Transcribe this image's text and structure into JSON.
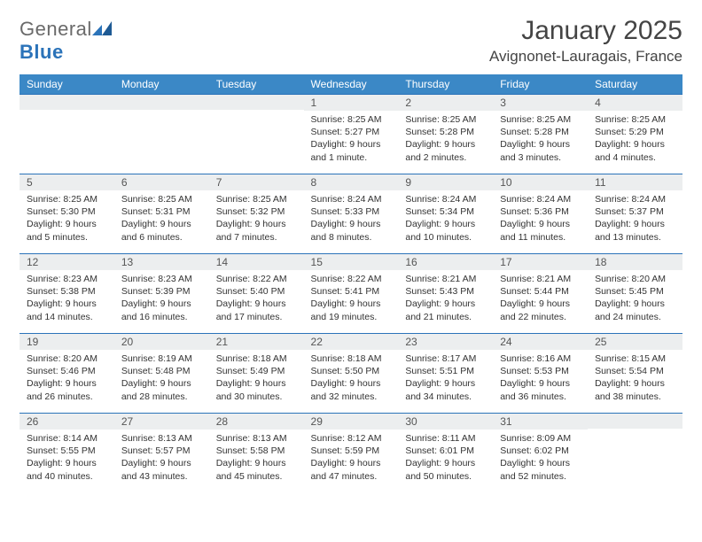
{
  "logo": {
    "text1": "General",
    "text2": "Blue"
  },
  "title": "January 2025",
  "location": "Avignonet-Lauragais, France",
  "colors": {
    "header_bg": "#3b88c6",
    "header_text": "#ffffff",
    "strip_bg": "#eceeef",
    "strip_border": "#2b73b9",
    "body_text": "#333333",
    "logo_gray": "#6a6a6a",
    "logo_blue": "#2b73b9"
  },
  "typography": {
    "title_fontsize": 30,
    "location_fontsize": 17,
    "th_fontsize": 12,
    "cell_fontsize": 10.5
  },
  "weekdays": [
    "Sunday",
    "Monday",
    "Tuesday",
    "Wednesday",
    "Thursday",
    "Friday",
    "Saturday"
  ],
  "grid": [
    [
      {
        "day": "",
        "lines": [
          "",
          "",
          "",
          ""
        ]
      },
      {
        "day": "",
        "lines": [
          "",
          "",
          "",
          ""
        ]
      },
      {
        "day": "",
        "lines": [
          "",
          "",
          "",
          ""
        ]
      },
      {
        "day": "1",
        "lines": [
          "Sunrise: 8:25 AM",
          "Sunset: 5:27 PM",
          "Daylight: 9 hours",
          "and 1 minute."
        ]
      },
      {
        "day": "2",
        "lines": [
          "Sunrise: 8:25 AM",
          "Sunset: 5:28 PM",
          "Daylight: 9 hours",
          "and 2 minutes."
        ]
      },
      {
        "day": "3",
        "lines": [
          "Sunrise: 8:25 AM",
          "Sunset: 5:28 PM",
          "Daylight: 9 hours",
          "and 3 minutes."
        ]
      },
      {
        "day": "4",
        "lines": [
          "Sunrise: 8:25 AM",
          "Sunset: 5:29 PM",
          "Daylight: 9 hours",
          "and 4 minutes."
        ]
      }
    ],
    [
      {
        "day": "5",
        "lines": [
          "Sunrise: 8:25 AM",
          "Sunset: 5:30 PM",
          "Daylight: 9 hours",
          "and 5 minutes."
        ]
      },
      {
        "day": "6",
        "lines": [
          "Sunrise: 8:25 AM",
          "Sunset: 5:31 PM",
          "Daylight: 9 hours",
          "and 6 minutes."
        ]
      },
      {
        "day": "7",
        "lines": [
          "Sunrise: 8:25 AM",
          "Sunset: 5:32 PM",
          "Daylight: 9 hours",
          "and 7 minutes."
        ]
      },
      {
        "day": "8",
        "lines": [
          "Sunrise: 8:24 AM",
          "Sunset: 5:33 PM",
          "Daylight: 9 hours",
          "and 8 minutes."
        ]
      },
      {
        "day": "9",
        "lines": [
          "Sunrise: 8:24 AM",
          "Sunset: 5:34 PM",
          "Daylight: 9 hours",
          "and 10 minutes."
        ]
      },
      {
        "day": "10",
        "lines": [
          "Sunrise: 8:24 AM",
          "Sunset: 5:36 PM",
          "Daylight: 9 hours",
          "and 11 minutes."
        ]
      },
      {
        "day": "11",
        "lines": [
          "Sunrise: 8:24 AM",
          "Sunset: 5:37 PM",
          "Daylight: 9 hours",
          "and 13 minutes."
        ]
      }
    ],
    [
      {
        "day": "12",
        "lines": [
          "Sunrise: 8:23 AM",
          "Sunset: 5:38 PM",
          "Daylight: 9 hours",
          "and 14 minutes."
        ]
      },
      {
        "day": "13",
        "lines": [
          "Sunrise: 8:23 AM",
          "Sunset: 5:39 PM",
          "Daylight: 9 hours",
          "and 16 minutes."
        ]
      },
      {
        "day": "14",
        "lines": [
          "Sunrise: 8:22 AM",
          "Sunset: 5:40 PM",
          "Daylight: 9 hours",
          "and 17 minutes."
        ]
      },
      {
        "day": "15",
        "lines": [
          "Sunrise: 8:22 AM",
          "Sunset: 5:41 PM",
          "Daylight: 9 hours",
          "and 19 minutes."
        ]
      },
      {
        "day": "16",
        "lines": [
          "Sunrise: 8:21 AM",
          "Sunset: 5:43 PM",
          "Daylight: 9 hours",
          "and 21 minutes."
        ]
      },
      {
        "day": "17",
        "lines": [
          "Sunrise: 8:21 AM",
          "Sunset: 5:44 PM",
          "Daylight: 9 hours",
          "and 22 minutes."
        ]
      },
      {
        "day": "18",
        "lines": [
          "Sunrise: 8:20 AM",
          "Sunset: 5:45 PM",
          "Daylight: 9 hours",
          "and 24 minutes."
        ]
      }
    ],
    [
      {
        "day": "19",
        "lines": [
          "Sunrise: 8:20 AM",
          "Sunset: 5:46 PM",
          "Daylight: 9 hours",
          "and 26 minutes."
        ]
      },
      {
        "day": "20",
        "lines": [
          "Sunrise: 8:19 AM",
          "Sunset: 5:48 PM",
          "Daylight: 9 hours",
          "and 28 minutes."
        ]
      },
      {
        "day": "21",
        "lines": [
          "Sunrise: 8:18 AM",
          "Sunset: 5:49 PM",
          "Daylight: 9 hours",
          "and 30 minutes."
        ]
      },
      {
        "day": "22",
        "lines": [
          "Sunrise: 8:18 AM",
          "Sunset: 5:50 PM",
          "Daylight: 9 hours",
          "and 32 minutes."
        ]
      },
      {
        "day": "23",
        "lines": [
          "Sunrise: 8:17 AM",
          "Sunset: 5:51 PM",
          "Daylight: 9 hours",
          "and 34 minutes."
        ]
      },
      {
        "day": "24",
        "lines": [
          "Sunrise: 8:16 AM",
          "Sunset: 5:53 PM",
          "Daylight: 9 hours",
          "and 36 minutes."
        ]
      },
      {
        "day": "25",
        "lines": [
          "Sunrise: 8:15 AM",
          "Sunset: 5:54 PM",
          "Daylight: 9 hours",
          "and 38 minutes."
        ]
      }
    ],
    [
      {
        "day": "26",
        "lines": [
          "Sunrise: 8:14 AM",
          "Sunset: 5:55 PM",
          "Daylight: 9 hours",
          "and 40 minutes."
        ]
      },
      {
        "day": "27",
        "lines": [
          "Sunrise: 8:13 AM",
          "Sunset: 5:57 PM",
          "Daylight: 9 hours",
          "and 43 minutes."
        ]
      },
      {
        "day": "28",
        "lines": [
          "Sunrise: 8:13 AM",
          "Sunset: 5:58 PM",
          "Daylight: 9 hours",
          "and 45 minutes."
        ]
      },
      {
        "day": "29",
        "lines": [
          "Sunrise: 8:12 AM",
          "Sunset: 5:59 PM",
          "Daylight: 9 hours",
          "and 47 minutes."
        ]
      },
      {
        "day": "30",
        "lines": [
          "Sunrise: 8:11 AM",
          "Sunset: 6:01 PM",
          "Daylight: 9 hours",
          "and 50 minutes."
        ]
      },
      {
        "day": "31",
        "lines": [
          "Sunrise: 8:09 AM",
          "Sunset: 6:02 PM",
          "Daylight: 9 hours",
          "and 52 minutes."
        ]
      },
      {
        "day": "",
        "lines": [
          "",
          "",
          "",
          ""
        ]
      }
    ]
  ]
}
